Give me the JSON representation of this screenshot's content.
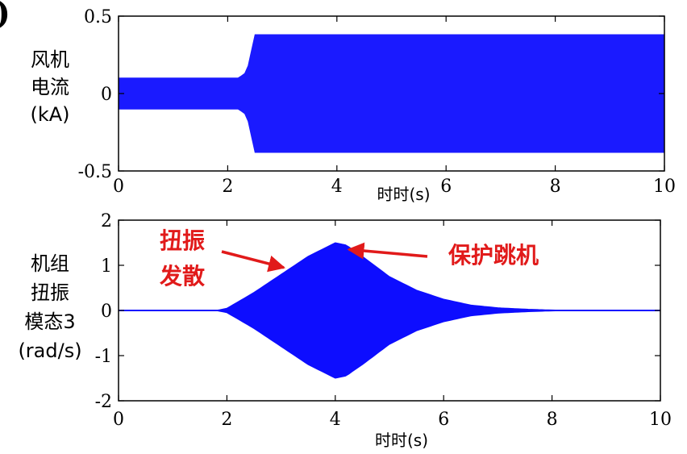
{
  "figure": {
    "corner_mark": ")"
  },
  "chart_data": [
    {
      "type": "line",
      "id": "top",
      "ylabel_lines": [
        "风机",
        "电流",
        "(kA)"
      ],
      "xlabel": "时时(s)",
      "xlim": [
        0,
        10
      ],
      "ylim": [
        -0.5,
        0.5
      ],
      "xticks": [
        "0",
        "2",
        "4",
        "6",
        "8",
        "10"
      ],
      "yticks": [
        "0.5",
        "0",
        "-0.5"
      ],
      "ytick_values": [
        0.5,
        0,
        -0.5
      ],
      "grid": false,
      "series": [
        {
          "color": "#1a1aff",
          "envelope": {
            "t": [
              0,
              2.0,
              2.2,
              2.35,
              2.45,
              2.5,
              10
            ],
            "upper": [
              0.1,
              0.1,
              0.1,
              0.14,
              0.3,
              0.38,
              0.38
            ],
            "lower": [
              -0.1,
              -0.1,
              -0.1,
              -0.14,
              -0.3,
              -0.38,
              -0.38
            ]
          }
        }
      ]
    },
    {
      "type": "line",
      "id": "bottom",
      "ylabel_lines": [
        "机组",
        "扭振",
        "模态3",
        "(rad/s)"
      ],
      "xlabel": "时时(s)",
      "xlim": [
        0,
        10
      ],
      "ylim": [
        -2,
        2
      ],
      "xticks": [
        "0",
        "2",
        "4",
        "6",
        "8",
        "10"
      ],
      "yticks": [
        "2",
        "1",
        "0",
        "-1",
        "-2"
      ],
      "ytick_values": [
        2,
        1,
        0,
        -1,
        -2
      ],
      "grid": false,
      "series": [
        {
          "color": "#0d0dff",
          "envelope": {
            "t": [
              0,
              1.8,
              2.0,
              2.5,
              3.0,
              3.5,
              4.0,
              4.2,
              4.5,
              5.0,
              5.5,
              6.0,
              6.5,
              7.0,
              7.5,
              8.0,
              9.0,
              10
            ],
            "upper": [
              0,
              0.0,
              0.05,
              0.4,
              0.8,
              1.2,
              1.5,
              1.45,
              1.2,
              0.75,
              0.45,
              0.25,
              0.12,
              0.06,
              0.03,
              0.01,
              0,
              0
            ],
            "lower": [
              0,
              0.0,
              -0.05,
              -0.4,
              -0.8,
              -1.2,
              -1.5,
              -1.45,
              -1.2,
              -0.75,
              -0.45,
              -0.25,
              -0.12,
              -0.06,
              -0.03,
              -0.01,
              0,
              0
            ]
          }
        }
      ],
      "annotations": [
        {
          "lines": [
            "扭振",
            "发散"
          ],
          "color": "#e11a1a",
          "points_to": {
            "x": 3.05,
            "y": 0.95
          }
        },
        {
          "lines": [
            "保护跳机"
          ],
          "color": "#e11a1a",
          "points_to": {
            "x": 4.25,
            "y": 1.35
          }
        }
      ]
    }
  ]
}
